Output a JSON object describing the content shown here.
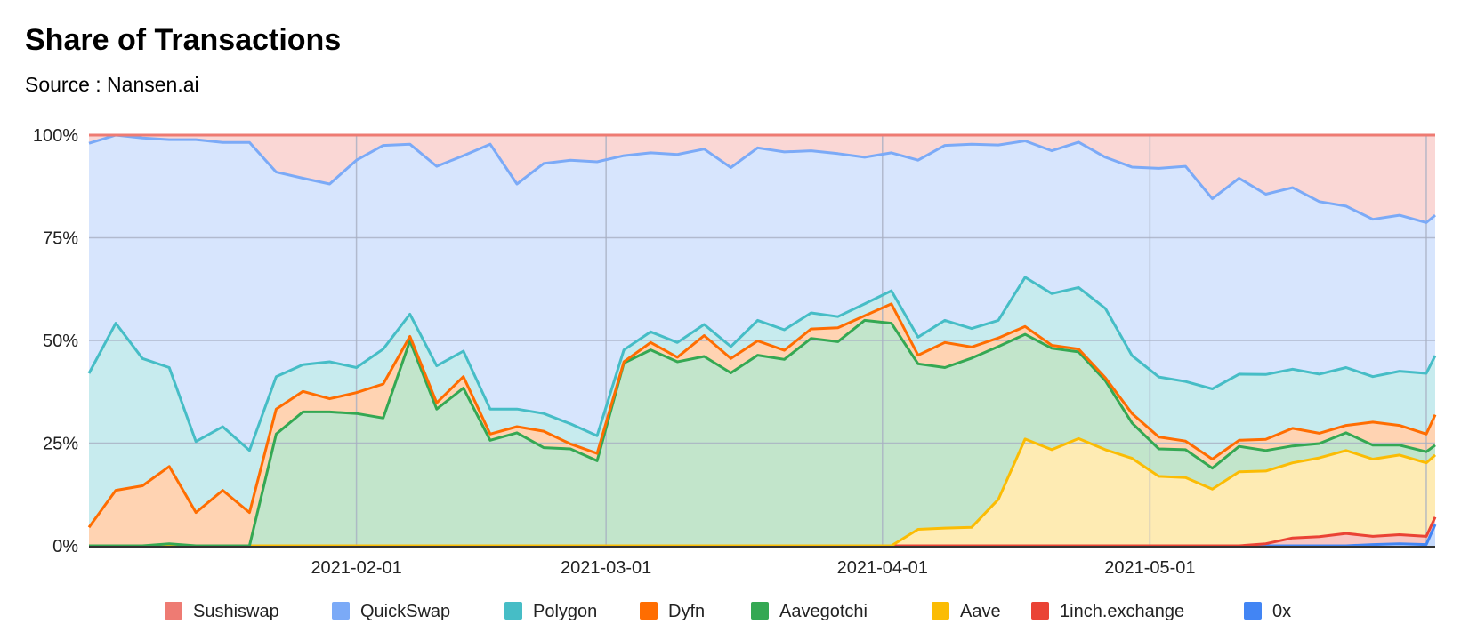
{
  "chart_data": {
    "type": "area",
    "stacked": "percent",
    "title": "Share of Transactions",
    "subtitle": "Source : Nansen.ai",
    "xlabel": "",
    "ylabel": "",
    "ylim": [
      0,
      100
    ],
    "y_ticks": [
      "0%",
      "25%",
      "50%",
      "75%",
      "100%"
    ],
    "x_ticks": [
      {
        "date": "2021-02-01",
        "label": "2021-02-01"
      },
      {
        "date": "2021-03-01",
        "label": "2021-03-01"
      },
      {
        "date": "2021-04-01",
        "label": "2021-04-01"
      },
      {
        "date": "2021-05-01",
        "label": "2021-05-01"
      },
      {
        "date": "2021-06-01",
        "label": ""
      }
    ],
    "grid": true,
    "legend_position": "bottom",
    "x": [
      "2021-01-02",
      "2021-01-05",
      "2021-01-08",
      "2021-01-11",
      "2021-01-14",
      "2021-01-17",
      "2021-01-20",
      "2021-01-23",
      "2021-01-26",
      "2021-01-29",
      "2021-02-01",
      "2021-02-04",
      "2021-02-07",
      "2021-02-10",
      "2021-02-13",
      "2021-02-16",
      "2021-02-19",
      "2021-02-22",
      "2021-02-25",
      "2021-02-28",
      "2021-03-03",
      "2021-03-06",
      "2021-03-09",
      "2021-03-12",
      "2021-03-15",
      "2021-03-18",
      "2021-03-21",
      "2021-03-24",
      "2021-03-27",
      "2021-03-30",
      "2021-04-02",
      "2021-04-05",
      "2021-04-08",
      "2021-04-11",
      "2021-04-14",
      "2021-04-17",
      "2021-04-20",
      "2021-04-23",
      "2021-04-26",
      "2021-04-29",
      "2021-05-02",
      "2021-05-05",
      "2021-05-08",
      "2021-05-11",
      "2021-05-14",
      "2021-05-17",
      "2021-05-20",
      "2021-05-23",
      "2021-05-26",
      "2021-05-29",
      "2021-06-01",
      "2021-06-02"
    ],
    "series_order_bottom_to_top": [
      "0x",
      "1inch.exchange",
      "Aave",
      "Aavegotchi",
      "Dyfn",
      "Polygon",
      "QuickSwap",
      "Sushiswap"
    ],
    "series": [
      {
        "name": "Sushiswap",
        "color": "#ee7b73",
        "values": [
          2.0,
          0.0,
          0.7,
          1.1,
          1.1,
          1.8,
          1.8,
          9.0,
          10.5,
          11.9,
          6.1,
          2.5,
          2.2,
          7.6,
          5.0,
          2.2,
          11.9,
          6.9,
          6.1,
          6.5,
          5.0,
          4.3,
          4.7,
          3.4,
          7.9,
          3.1,
          4.1,
          3.8,
          4.5,
          5.4,
          4.3,
          6.1,
          2.5,
          2.2,
          2.4,
          1.4,
          3.8,
          1.7,
          5.4,
          7.8,
          8.1,
          7.6,
          15.5,
          10.5,
          14.4,
          12.8,
          16.2,
          17.3,
          20.5,
          19.5,
          21.3,
          19.5
        ]
      },
      {
        "name": "QuickSwap",
        "color": "#7baaf7",
        "values": [
          56.0,
          45.8,
          53.7,
          55.5,
          73.5,
          69.2,
          75.0,
          49.8,
          45.4,
          43.3,
          50.5,
          49.6,
          41.4,
          48.6,
          47.6,
          64.5,
          54.8,
          60.9,
          64.2,
          66.7,
          47.3,
          43.6,
          45.8,
          42.7,
          43.6,
          42.0,
          43.3,
          39.5,
          39.7,
          35.7,
          33.6,
          43.1,
          42.6,
          44.9,
          42.7,
          33.2,
          34.8,
          35.4,
          36.8,
          45.9,
          50.8,
          52.4,
          46.3,
          47.7,
          43.9,
          44.2,
          42.0,
          39.3,
          38.3,
          38.0,
          36.7,
          34.2
        ]
      },
      {
        "name": "Polygon",
        "color": "#46bdc6",
        "values": [
          37.5,
          40.7,
          31.0,
          24.1,
          17.3,
          15.5,
          15.1,
          7.9,
          6.5,
          9.0,
          6.1,
          8.5,
          5.4,
          9.0,
          6.2,
          6.1,
          4.3,
          4.3,
          4.9,
          4.3,
          2.9,
          2.6,
          3.6,
          2.7,
          2.9,
          5.0,
          5.0,
          3.9,
          2.7,
          2.9,
          3.2,
          4.4,
          5.4,
          4.5,
          4.3,
          12.0,
          12.6,
          15.0,
          16.9,
          14.1,
          14.6,
          14.5,
          17.1,
          16.1,
          15.8,
          14.4,
          14.4,
          14.1,
          11.1,
          13.2,
          14.8,
          14.4
        ]
      },
      {
        "name": "Dyfn",
        "color": "#ff6d01",
        "values": [
          4.5,
          13.5,
          14.6,
          18.8,
          8.1,
          13.5,
          8.1,
          6.1,
          5.0,
          3.2,
          5.1,
          8.3,
          1.1,
          1.5,
          2.8,
          1.5,
          1.5,
          4.0,
          1.2,
          1.8,
          0.3,
          1.8,
          1.1,
          5.1,
          3.5,
          3.5,
          2.2,
          2.3,
          3.4,
          1.1,
          4.7,
          2.1,
          6.1,
          2.7,
          2.1,
          1.9,
          0.7,
          0.7,
          0.7,
          2.3,
          2.9,
          2.1,
          2.2,
          1.5,
          2.7,
          4.3,
          2.5,
          1.8,
          5.6,
          4.8,
          4.3,
          7.4
        ]
      },
      {
        "name": "Aavegotchi",
        "color": "#34a853",
        "values": [
          0,
          0,
          0,
          0.5,
          0,
          0,
          0,
          27.2,
          32.6,
          32.6,
          32.2,
          31.1,
          49.9,
          33.3,
          38.4,
          25.7,
          27.5,
          23.9,
          23.6,
          20.7,
          44.5,
          47.7,
          44.8,
          46.1,
          42.1,
          46.4,
          45.4,
          50.5,
          49.7,
          54.9,
          54.2,
          40.3,
          39.1,
          41.2,
          37.2,
          25.5,
          24.7,
          21.1,
          16.8,
          8.6,
          6.7,
          6.8,
          5.1,
          6.2,
          5.0,
          4.1,
          3.5,
          4.3,
          3.4,
          2.4,
          2.7,
          2.4
        ]
      },
      {
        "name": "Aave",
        "color": "#fbbc04",
        "values": [
          0,
          0,
          0,
          0,
          0,
          0,
          0,
          0,
          0,
          0,
          0,
          0,
          0,
          0,
          0,
          0,
          0,
          0,
          0,
          0,
          0,
          0,
          0,
          0,
          0,
          0,
          0,
          0,
          0,
          0,
          0,
          4.0,
          4.3,
          4.5,
          11.3,
          26.0,
          23.4,
          26.1,
          23.4,
          21.3,
          16.9,
          16.6,
          13.8,
          18.0,
          17.7,
          18.3,
          19.2,
          20.2,
          18.8,
          19.4,
          17.9,
          15.1
        ]
      },
      {
        "name": "1inch.exchange",
        "color": "#ea4335",
        "values": [
          0,
          0,
          0,
          0,
          0,
          0,
          0,
          0,
          0,
          0,
          0,
          0,
          0,
          0,
          0,
          0,
          0,
          0,
          0,
          0,
          0,
          0,
          0,
          0,
          0,
          0,
          0,
          0,
          0,
          0,
          0,
          0,
          0,
          0,
          0,
          0,
          0,
          0,
          0,
          0,
          0,
          0,
          0,
          0,
          0.5,
          1.9,
          2.2,
          3.0,
          2.0,
          2.2,
          2.0,
          1.8
        ]
      },
      {
        "name": "0x",
        "color": "#4285f4",
        "values": [
          0,
          0,
          0,
          0,
          0,
          0,
          0,
          0,
          0,
          0,
          0,
          0,
          0,
          0,
          0,
          0,
          0,
          0,
          0,
          0,
          0,
          0,
          0,
          0,
          0,
          0,
          0,
          0,
          0,
          0,
          0,
          0,
          0,
          0,
          0,
          0,
          0,
          0,
          0,
          0,
          0,
          0,
          0,
          0,
          0,
          0,
          0,
          0,
          0.3,
          0.5,
          0.3,
          5.2
        ]
      }
    ]
  }
}
